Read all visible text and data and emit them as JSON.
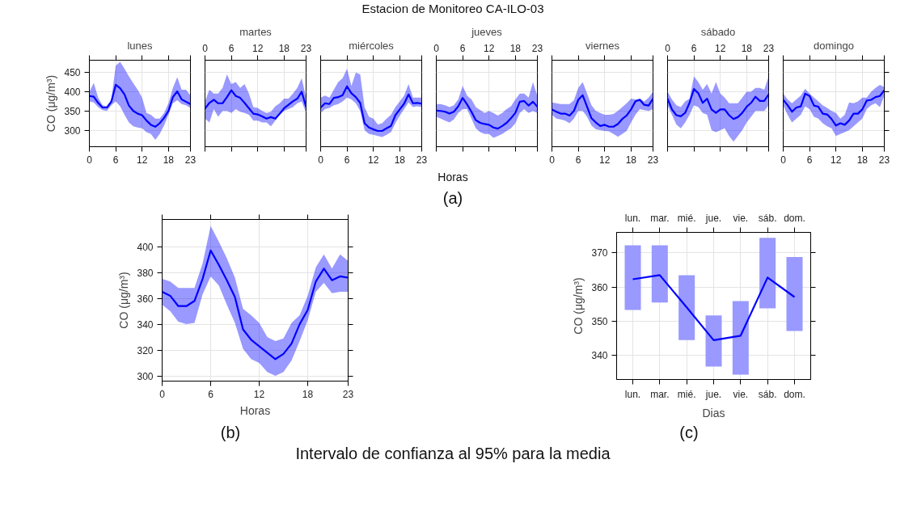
{
  "chart_data": [
    {
      "type": "line",
      "title": "lunes",
      "ylabel": "CO (μg/m³)",
      "annotations": [
        "Estacion de Monitoreo CA-ILO-03"
      ],
      "x": [
        0,
        1,
        2,
        3,
        4,
        5,
        6,
        7,
        8,
        9,
        10,
        11,
        12,
        13,
        14,
        15,
        16,
        17,
        18,
        19,
        20,
        21,
        22,
        23
      ],
      "xlim": [
        0,
        23
      ],
      "xticks": [
        0,
        6,
        12,
        18,
        23
      ],
      "ylim": [
        257,
        482
      ],
      "yticks": [
        300,
        350,
        400,
        450
      ],
      "grid": true,
      "series": [
        {
          "color": "#0000ff",
          "values": [
            389,
            387,
            371,
            359,
            359,
            374,
            418,
            409,
            393,
            364,
            350,
            343,
            339,
            325,
            314,
            309,
            318,
            332,
            350,
            386,
            401,
            380,
            374,
            368
          ],
          "lower": [
            375,
            372,
            360,
            352,
            350,
            365,
            375,
            362,
            340,
            320,
            310,
            307,
            305,
            295,
            290,
            275,
            290,
            312,
            340,
            370,
            378,
            368,
            365,
            358
          ],
          "upper": [
            400,
            423,
            385,
            365,
            362,
            380,
            468,
            478,
            460,
            440,
            422,
            405,
            385,
            345,
            340,
            330,
            330,
            345,
            370,
            410,
            438,
            405,
            405,
            390
          ]
        }
      ]
    },
    {
      "type": "line",
      "title": "martes",
      "x": [
        0,
        1,
        2,
        3,
        4,
        5,
        6,
        7,
        8,
        9,
        10,
        11,
        12,
        13,
        14,
        15,
        16,
        17,
        18,
        19,
        20,
        21,
        22,
        23
      ],
      "xlim": [
        0,
        23
      ],
      "xticks": [
        0,
        6,
        12,
        18,
        23
      ],
      "ylim": [
        257,
        482
      ],
      "yticks": [
        300,
        350,
        400,
        450
      ],
      "grid": true,
      "tick_labels": "x",
      "series": [
        {
          "color": "#0000ff",
          "values": [
            356,
            371,
            379,
            370,
            370,
            386,
            404,
            389,
            384,
            371,
            357,
            343,
            341,
            336,
            330,
            334,
            330,
            343,
            357,
            366,
            375,
            382,
            400,
            361
          ],
          "lower": [
            330,
            320,
            355,
            335,
            350,
            350,
            345,
            355,
            348,
            345,
            340,
            325,
            325,
            320,
            320,
            310,
            325,
            340,
            350,
            355,
            360,
            370,
            375,
            345
          ],
          "upper": [
            375,
            405,
            395,
            395,
            410,
            445,
            420,
            425,
            410,
            420,
            395,
            360,
            358,
            350,
            345,
            348,
            362,
            370,
            382,
            382,
            395,
            410,
            435,
            385
          ]
        }
      ]
    },
    {
      "type": "line",
      "title": "miércoles",
      "x": [
        0,
        1,
        2,
        3,
        4,
        5,
        6,
        7,
        8,
        9,
        10,
        11,
        12,
        13,
        14,
        15,
        16,
        17,
        18,
        19,
        20,
        21,
        22,
        23
      ],
      "xlim": [
        0,
        23
      ],
      "xticks": [
        0,
        6,
        12,
        18,
        23
      ],
      "ylim": [
        257,
        482
      ],
      "yticks": [
        300,
        350,
        400,
        450
      ],
      "grid": true,
      "tick_labels": "x",
      "series": [
        {
          "color": "#0000ff",
          "values": [
            359,
            370,
            368,
            384,
            386,
            391,
            414,
            396,
            386,
            371,
            318,
            307,
            302,
            298,
            298,
            305,
            311,
            339,
            354,
            369,
            393,
            370,
            371,
            369
          ],
          "lower": [
            345,
            355,
            358,
            365,
            368,
            375,
            385,
            380,
            370,
            350,
            300,
            290,
            288,
            285,
            282,
            288,
            295,
            318,
            338,
            355,
            372,
            360,
            362,
            360
          ],
          "upper": [
            385,
            390,
            385,
            405,
            425,
            435,
            460,
            415,
            450,
            445,
            360,
            335,
            330,
            315,
            318,
            330,
            340,
            360,
            375,
            390,
            420,
            385,
            385,
            385
          ]
        }
      ]
    },
    {
      "type": "line",
      "title": "jueves",
      "xlabel": "Horas",
      "annotations": [
        "(a)"
      ],
      "x": [
        0,
        1,
        2,
        3,
        4,
        5,
        6,
        7,
        8,
        9,
        10,
        11,
        12,
        13,
        14,
        15,
        16,
        17,
        18,
        19,
        20,
        21,
        22,
        23
      ],
      "xlim": [
        0,
        23
      ],
      "xticks": [
        0,
        6,
        12,
        18,
        23
      ],
      "ylim": [
        257,
        482
      ],
      "yticks": [
        300,
        350,
        400,
        450
      ],
      "grid": true,
      "tick_labels": "x",
      "series": [
        {
          "color": "#0000ff",
          "values": [
            351,
            350,
            348,
            343,
            348,
            362,
            384,
            367,
            348,
            326,
            319,
            316,
            314,
            307,
            304,
            311,
            319,
            331,
            345,
            374,
            376,
            364,
            374,
            361
          ],
          "lower": [
            335,
            330,
            325,
            320,
            328,
            345,
            355,
            355,
            330,
            305,
            295,
            290,
            290,
            280,
            285,
            290,
            298,
            305,
            318,
            345,
            355,
            345,
            350,
            345
          ],
          "upper": [
            368,
            368,
            365,
            360,
            365,
            380,
            415,
            390,
            380,
            360,
            352,
            345,
            350,
            345,
            338,
            345,
            355,
            362,
            380,
            395,
            395,
            385,
            425,
            388
          ]
        }
      ]
    },
    {
      "type": "line",
      "title": "viernes",
      "x": [
        0,
        1,
        2,
        3,
        4,
        5,
        6,
        7,
        8,
        9,
        10,
        11,
        12,
        13,
        14,
        15,
        16,
        17,
        18,
        19,
        20,
        21,
        22,
        23
      ],
      "xlim": [
        0,
        23
      ],
      "xticks": [
        0,
        6,
        12,
        18,
        23
      ],
      "ylim": [
        257,
        482
      ],
      "yticks": [
        300,
        350,
        400,
        450
      ],
      "grid": true,
      "tick_labels": "x",
      "series": [
        {
          "color": "#0000ff",
          "values": [
            354,
            348,
            343,
            343,
            338,
            350,
            379,
            391,
            361,
            331,
            320,
            311,
            314,
            309,
            309,
            316,
            329,
            338,
            354,
            375,
            379,
            366,
            364,
            382
          ],
          "lower": [
            340,
            330,
            328,
            325,
            318,
            330,
            350,
            350,
            335,
            312,
            302,
            300,
            298,
            297,
            290,
            283,
            290,
            298,
            320,
            340,
            355,
            352,
            350,
            355
          ],
          "upper": [
            372,
            370,
            368,
            368,
            368,
            378,
            410,
            425,
            395,
            365,
            350,
            345,
            340,
            340,
            342,
            350,
            360,
            370,
            382,
            380,
            382,
            375,
            385,
            400
          ]
        }
      ]
    },
    {
      "type": "line",
      "title": "sábado",
      "x": [
        0,
        1,
        2,
        3,
        4,
        5,
        6,
        7,
        8,
        9,
        10,
        11,
        12,
        13,
        14,
        15,
        16,
        17,
        18,
        19,
        20,
        21,
        22,
        23
      ],
      "xlim": [
        0,
        23
      ],
      "xticks": [
        0,
        6,
        12,
        18,
        23
      ],
      "ylim": [
        257,
        482
      ],
      "yticks": [
        300,
        350,
        400,
        450
      ],
      "grid": true,
      "tick_labels": "x",
      "series": [
        {
          "color": "#0000ff",
          "values": [
            382,
            354,
            339,
            336,
            345,
            371,
            407,
            396,
            371,
            382,
            354,
            345,
            354,
            354,
            339,
            329,
            334,
            345,
            361,
            371,
            387,
            376,
            376,
            393
          ],
          "lower": [
            365,
            340,
            315,
            305,
            320,
            340,
            365,
            360,
            345,
            340,
            300,
            295,
            300,
            305,
            285,
            270,
            285,
            300,
            320,
            335,
            350,
            350,
            350,
            365
          ],
          "upper": [
            400,
            380,
            365,
            360,
            375,
            382,
            440,
            425,
            405,
            420,
            395,
            425,
            395,
            385,
            370,
            370,
            370,
            385,
            400,
            400,
            410,
            410,
            405,
            440
          ]
        }
      ]
    },
    {
      "type": "line",
      "title": "domingo",
      "x": [
        0,
        1,
        2,
        3,
        4,
        5,
        6,
        7,
        8,
        9,
        10,
        11,
        12,
        13,
        14,
        15,
        16,
        17,
        18,
        19,
        20,
        21,
        22,
        23
      ],
      "xlim": [
        0,
        23
      ],
      "xticks": [
        0,
        6,
        12,
        18,
        23
      ],
      "ylim": [
        257,
        482
      ],
      "yticks": [
        300,
        350,
        400,
        450
      ],
      "grid": true,
      "tick_labels": "x",
      "series": [
        {
          "color": "#0000ff",
          "values": [
            379,
            365,
            348,
            359,
            362,
            395,
            389,
            364,
            361,
            343,
            341,
            329,
            312,
            318,
            314,
            325,
            343,
            343,
            354,
            377,
            379,
            386,
            389,
            404
          ],
          "lower": [
            365,
            340,
            320,
            330,
            340,
            362,
            355,
            335,
            330,
            318,
            310,
            305,
            285,
            290,
            295,
            300,
            310,
            320,
            330,
            355,
            365,
            370,
            360,
            390
          ],
          "upper": [
            395,
            380,
            370,
            380,
            390,
            408,
            395,
            385,
            375,
            365,
            358,
            350,
            345,
            330,
            340,
            372,
            370,
            375,
            385,
            385,
            400,
            410,
            418,
            412
          ]
        }
      ]
    },
    {
      "type": "line",
      "xlabel": "Horas",
      "ylabel": "CO (μg/m³)",
      "annotations": [
        "(b)"
      ],
      "x": [
        0,
        1,
        2,
        3,
        4,
        5,
        6,
        7,
        8,
        9,
        10,
        11,
        12,
        13,
        14,
        15,
        16,
        17,
        18,
        19,
        20,
        21,
        22,
        23
      ],
      "xlim": [
        0,
        23
      ],
      "xticks": [
        0,
        6,
        12,
        18,
        23
      ],
      "ylim": [
        296,
        421
      ],
      "yticks": [
        300,
        320,
        340,
        360,
        380,
        400
      ],
      "grid": true,
      "series": [
        {
          "color": "#0000ff",
          "values": [
            365,
            362,
            354,
            354,
            358,
            375,
            397,
            386,
            374,
            361,
            336,
            328,
            323,
            318,
            313,
            317,
            325,
            340,
            351,
            373,
            383,
            374,
            377,
            376
          ],
          "lower": [
            355,
            350,
            342,
            340,
            341,
            363,
            377,
            370,
            355,
            341,
            321,
            313,
            310,
            303,
            300,
            303,
            312,
            327,
            343,
            365,
            372,
            364,
            365,
            365
          ],
          "upper": [
            375,
            373,
            368,
            368,
            368,
            387,
            416,
            404,
            391,
            376,
            352,
            347,
            341,
            330,
            327,
            329,
            341,
            347,
            362,
            384,
            394,
            383,
            394,
            389
          ]
        }
      ]
    },
    {
      "type": "bar",
      "xlabel": "Dias",
      "ylabel": "CO (μg/m³)",
      "annotations": [
        "(c)",
        "Intervalo de confianza al 95% para la media"
      ],
      "categories": [
        "lun.",
        "mar.",
        "mié.",
        "jue.",
        "vie.",
        "sáb.",
        "dom."
      ],
      "ylim": [
        333,
        376
      ],
      "yticks": [
        340,
        350,
        360,
        370
      ],
      "grid": true,
      "series": [
        {
          "type": "bar",
          "color": "#9999ff",
          "base": [
            353.3,
            355.5,
            344.5,
            336.8,
            334.4,
            353.8,
            347.2
          ],
          "values": [
            18.9,
            16.7,
            19.0,
            14.9,
            21.5,
            20.6,
            21.6
          ]
        },
        {
          "type": "line",
          "color": "#0000ff",
          "values": [
            362.3,
            363.5,
            354.1,
            344.5,
            345.8,
            362.8,
            357.1
          ]
        }
      ]
    }
  ]
}
